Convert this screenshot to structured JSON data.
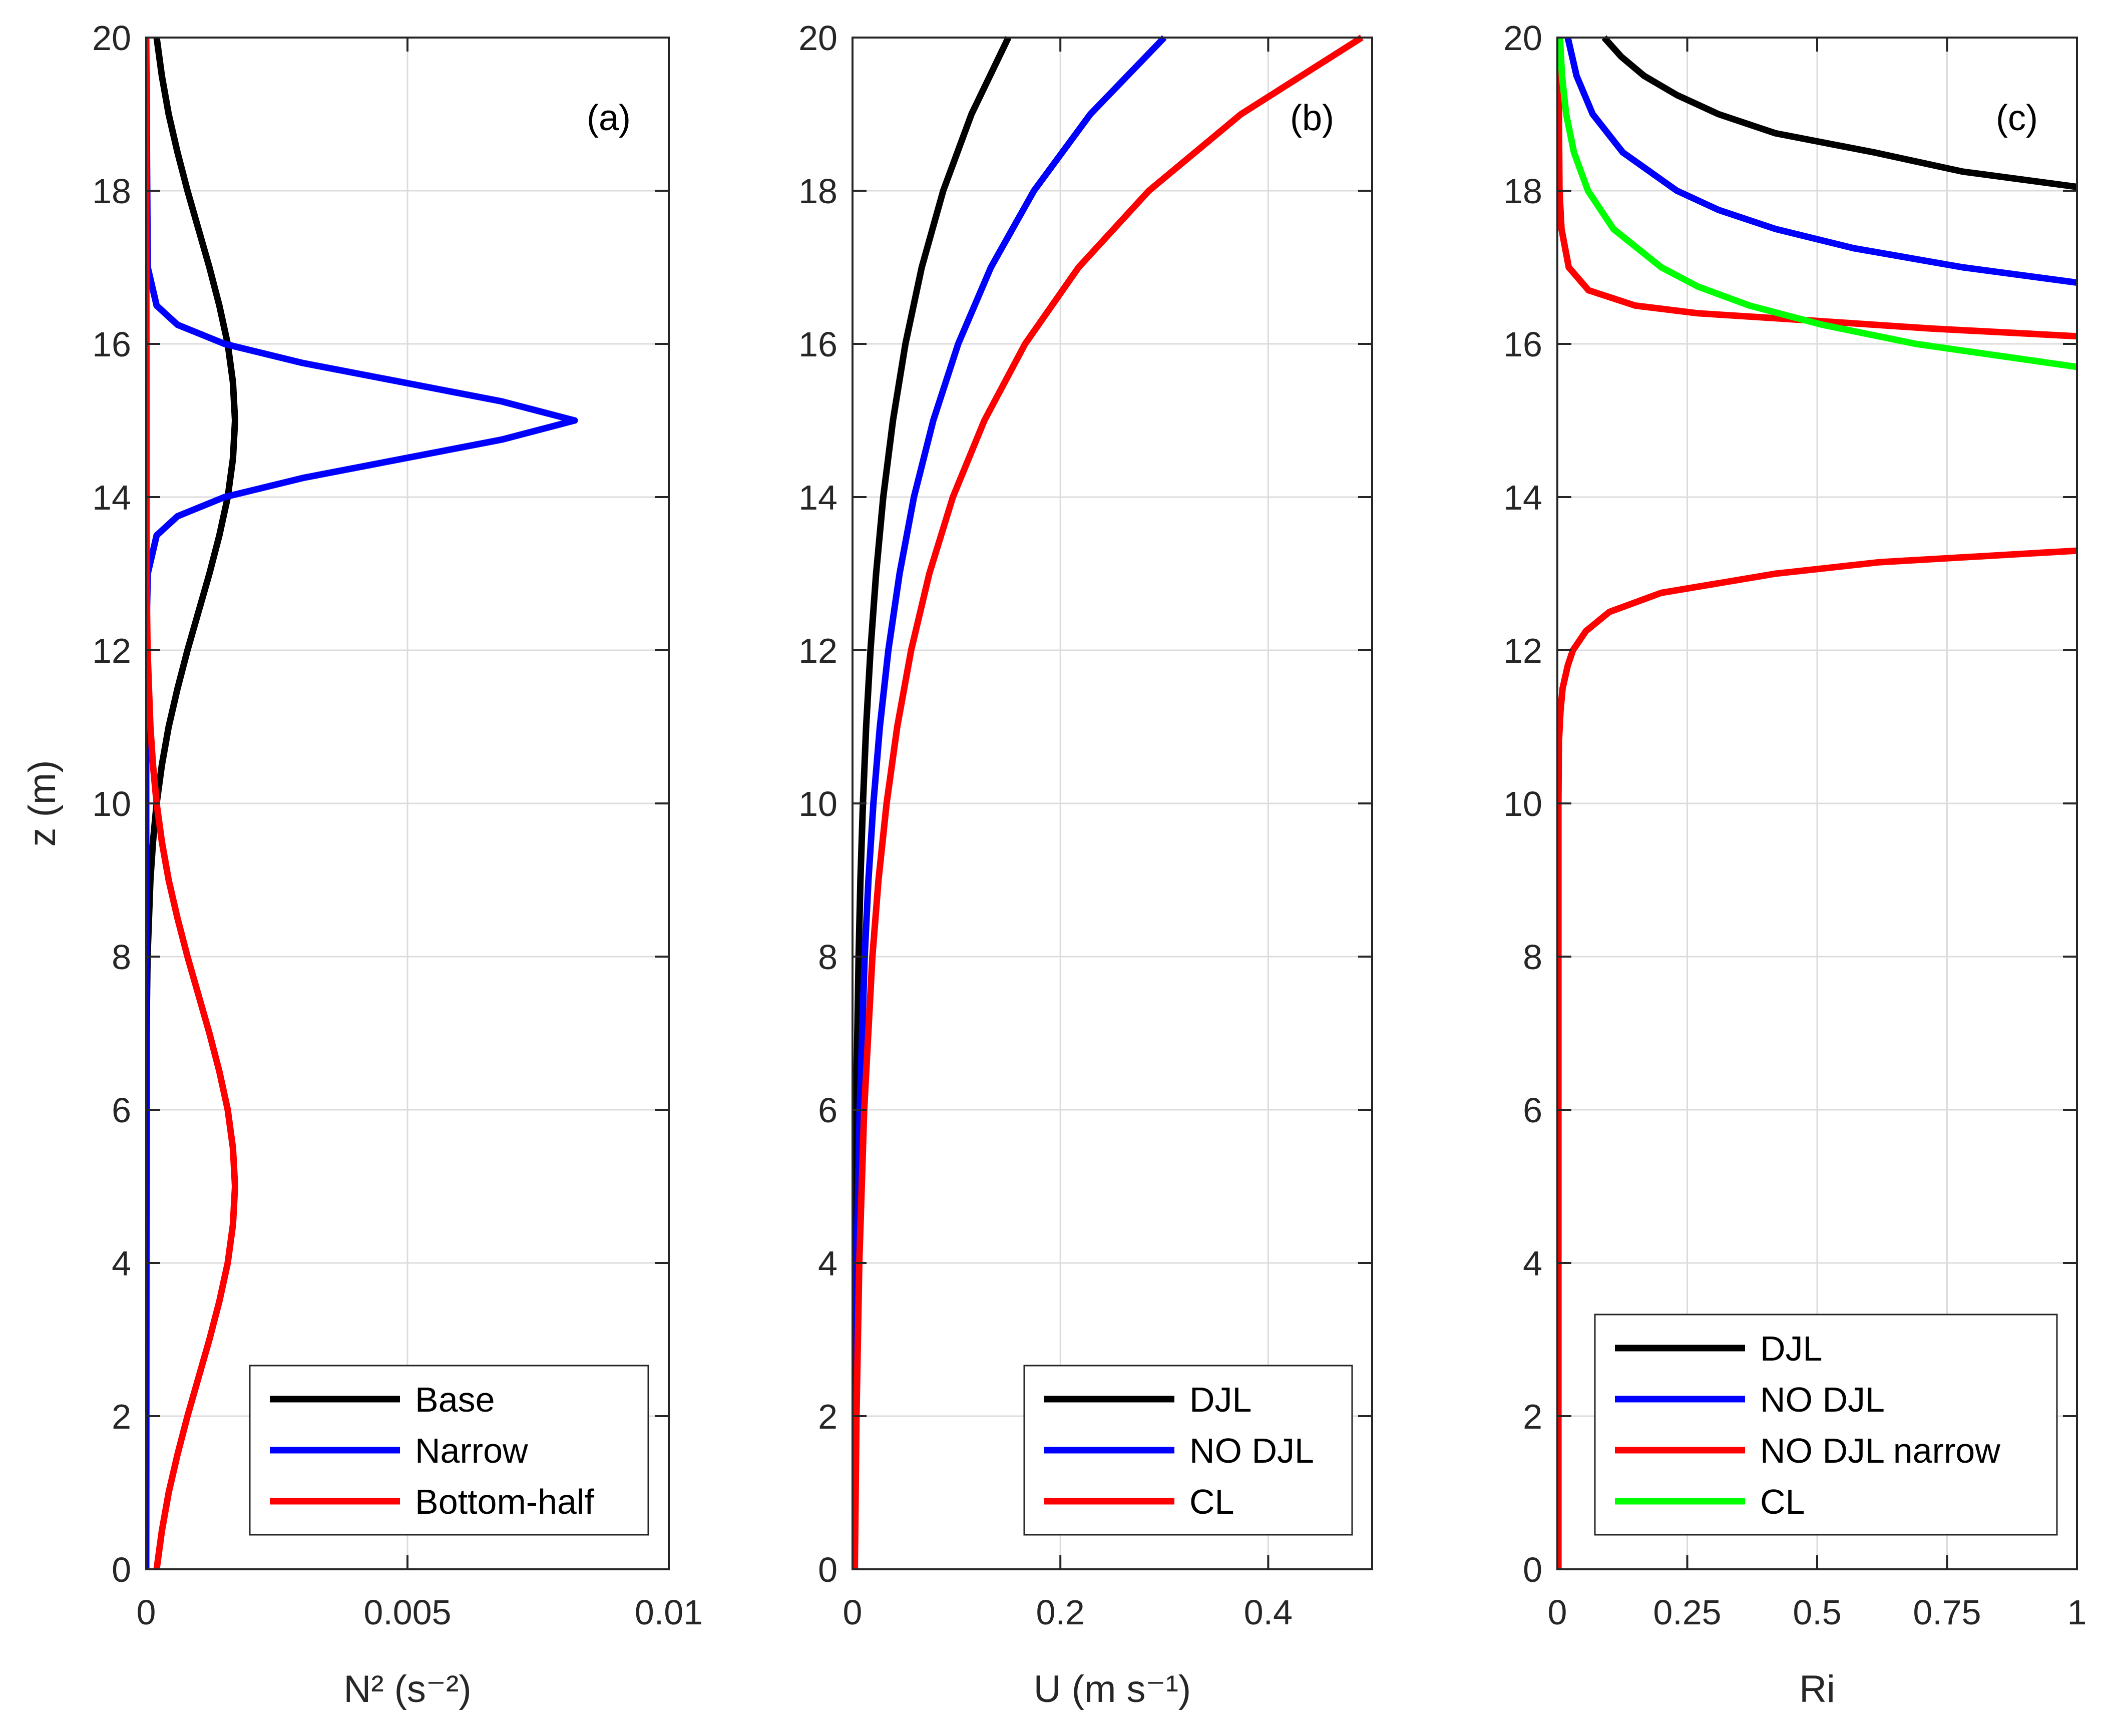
{
  "chart_data": [
    {
      "type": "line",
      "panel_label": "(a)",
      "xlabel": "N² (s⁻²)",
      "ylabel": "z (m)",
      "xlim": [
        0,
        0.01
      ],
      "ylim": [
        0,
        20
      ],
      "grid": true,
      "xticks": [
        {
          "v": 0,
          "label": "0"
        },
        {
          "v": 0.005,
          "label": "0.005"
        },
        {
          "v": 0.01,
          "label": "0.01"
        }
      ],
      "yticks": [
        {
          "v": 0,
          "label": "0"
        },
        {
          "v": 2,
          "label": "2"
        },
        {
          "v": 4,
          "label": "4"
        },
        {
          "v": 6,
          "label": "6"
        },
        {
          "v": 8,
          "label": "8"
        },
        {
          "v": 10,
          "label": "10"
        },
        {
          "v": 12,
          "label": "12"
        },
        {
          "v": 14,
          "label": "14"
        },
        {
          "v": 16,
          "label": "16"
        },
        {
          "v": 18,
          "label": "18"
        },
        {
          "v": 20,
          "label": "20"
        }
      ],
      "legend_position": "bottom-right",
      "series": [
        {
          "name": "Base",
          "color": "#000000",
          "z": [
            0,
            7,
            8,
            9,
            9.5,
            10,
            10.5,
            11,
            11.5,
            12,
            12.5,
            13,
            13.5,
            14,
            14.5,
            15,
            15.5,
            16,
            16.5,
            17,
            17.5,
            18,
            18.5,
            19,
            19.5,
            20
          ],
          "x": [
            0,
            7e-06,
            2.6e-05,
            8e-05,
            0.00013,
            0.0002,
            0.0003,
            0.00043,
            0.0006,
            0.00079,
            0.001,
            0.00121,
            0.0014,
            0.00156,
            0.00166,
            0.0017,
            0.00166,
            0.00156,
            0.0014,
            0.00121,
            0.001,
            0.00079,
            0.0006,
            0.00043,
            0.0003,
            0.0002
          ]
        },
        {
          "name": "Narrow",
          "color": "#0000ff",
          "z": [
            0,
            12,
            13,
            13.5,
            13.75,
            14,
            14.25,
            14.5,
            14.75,
            15,
            15.25,
            15.5,
            15.75,
            16,
            16.25,
            16.5,
            17,
            20
          ],
          "x": [
            0,
            0,
            3e-05,
            0.0002,
            0.0006,
            0.0015,
            0.003,
            0.0049,
            0.0068,
            0.0082,
            0.0068,
            0.0049,
            0.003,
            0.0015,
            0.0006,
            0.0002,
            3e-05,
            0
          ]
        },
        {
          "name": "Bottom-half",
          "color": "#ff0000",
          "z": [
            0,
            0.5,
            1,
            1.5,
            2,
            2.5,
            3,
            3.5,
            4,
            4.5,
            5,
            5.5,
            6,
            6.5,
            7,
            7.5,
            8,
            8.5,
            9,
            9.5,
            10,
            10.5,
            11,
            12,
            13,
            20
          ],
          "x": [
            0.0002,
            0.0003,
            0.00043,
            0.0006,
            0.00079,
            0.001,
            0.00121,
            0.0014,
            0.00156,
            0.00166,
            0.0017,
            0.00166,
            0.00156,
            0.0014,
            0.00121,
            0.001,
            0.00079,
            0.0006,
            0.00043,
            0.0003,
            0.0002,
            0.00013,
            8e-05,
            2.6e-05,
            7e-06,
            0
          ]
        }
      ]
    },
    {
      "type": "line",
      "panel_label": "(b)",
      "xlabel": "U (m s⁻¹)",
      "ylabel": "",
      "xlim": [
        0,
        0.5
      ],
      "ylim": [
        0,
        20
      ],
      "grid": true,
      "xticks": [
        {
          "v": 0,
          "label": "0"
        },
        {
          "v": 0.2,
          "label": "0.2"
        },
        {
          "v": 0.4,
          "label": "0.4"
        }
      ],
      "yticks": [
        {
          "v": 0,
          "label": "0"
        },
        {
          "v": 2,
          "label": "2"
        },
        {
          "v": 4,
          "label": "4"
        },
        {
          "v": 6,
          "label": "6"
        },
        {
          "v": 8,
          "label": "8"
        },
        {
          "v": 10,
          "label": "10"
        },
        {
          "v": 12,
          "label": "12"
        },
        {
          "v": 14,
          "label": "14"
        },
        {
          "v": 16,
          "label": "16"
        },
        {
          "v": 18,
          "label": "18"
        },
        {
          "v": 20,
          "label": "20"
        }
      ],
      "legend_position": "bottom-right",
      "series": [
        {
          "name": "DJL",
          "color": "#000000",
          "z": [
            0,
            2,
            4,
            6,
            8,
            9,
            10,
            11,
            12,
            13,
            14,
            15,
            16,
            17,
            18,
            19,
            20
          ],
          "x": [
            0.0007,
            0.0012,
            0.002,
            0.0034,
            0.0059,
            0.0076,
            0.01,
            0.0131,
            0.0173,
            0.0227,
            0.0296,
            0.0389,
            0.0509,
            0.0666,
            0.0873,
            0.1145,
            0.15
          ]
        },
        {
          "name": "NO DJL",
          "color": "#0000ff",
          "z": [
            0,
            2,
            4,
            6,
            8,
            9,
            10,
            11,
            12,
            13,
            14,
            15,
            16,
            17,
            18,
            19,
            20
          ],
          "x": [
            0.0014,
            0.0023,
            0.004,
            0.0069,
            0.0117,
            0.0153,
            0.0201,
            0.0263,
            0.0345,
            0.0453,
            0.0591,
            0.0777,
            0.1017,
            0.1332,
            0.1746,
            0.2289,
            0.3
          ]
        },
        {
          "name": "CL",
          "color": "#ff0000",
          "z": [
            0,
            2,
            4,
            6,
            8,
            9,
            10,
            11,
            12,
            13,
            14,
            15,
            16,
            17,
            18,
            19,
            20
          ],
          "x": [
            0.0022,
            0.0038,
            0.0065,
            0.0112,
            0.0191,
            0.025,
            0.0328,
            0.043,
            0.0564,
            0.0739,
            0.0966,
            0.1269,
            0.1661,
            0.2176,
            0.2852,
            0.3739,
            0.49
          ]
        }
      ]
    },
    {
      "type": "line",
      "panel_label": "(c)",
      "xlabel": "Ri",
      "ylabel": "",
      "xlim": [
        0,
        1
      ],
      "ylim": [
        0,
        20
      ],
      "grid": true,
      "xticks": [
        {
          "v": 0,
          "label": "0"
        },
        {
          "v": 0.25,
          "label": "0.25"
        },
        {
          "v": 0.5,
          "label": "0.5"
        },
        {
          "v": 0.75,
          "label": "0.75"
        },
        {
          "v": 1,
          "label": "1"
        }
      ],
      "yticks": [
        {
          "v": 0,
          "label": "0"
        },
        {
          "v": 2,
          "label": "2"
        },
        {
          "v": 4,
          "label": "4"
        },
        {
          "v": 6,
          "label": "6"
        },
        {
          "v": 8,
          "label": "8"
        },
        {
          "v": 10,
          "label": "10"
        },
        {
          "v": 12,
          "label": "12"
        },
        {
          "v": 14,
          "label": "14"
        },
        {
          "v": 16,
          "label": "16"
        },
        {
          "v": 18,
          "label": "18"
        },
        {
          "v": 20,
          "label": "20"
        }
      ],
      "legend_position": "bottom-right",
      "series": [
        {
          "name": "DJL",
          "color": "#000000",
          "z": [
            18.05,
            18.25,
            18.5,
            18.75,
            19,
            19.25,
            19.5,
            19.75,
            20
          ],
          "x": [
            1,
            0.78,
            0.61,
            0.42,
            0.31,
            0.23,
            0.167,
            0.123,
            0.09
          ]
        },
        {
          "name": "NO DJL",
          "color": "#0000ff",
          "z": [
            16.8,
            17,
            17.25,
            17.5,
            17.75,
            18,
            18.5,
            19,
            19.5,
            20
          ],
          "x": [
            1,
            0.78,
            0.57,
            0.42,
            0.31,
            0.23,
            0.126,
            0.068,
            0.037,
            0.02
          ]
        },
        {
          "name": "NO DJL narrow",
          "color": "#ff0000",
          "z": [
            0,
            10,
            10.8,
            11.2,
            11.5,
            11.8,
            12,
            12.25,
            12.5,
            12.75,
            13,
            13.15,
            13.3,
            null,
            16.1,
            16.2,
            16.3,
            16.4,
            16.5,
            16.7,
            17,
            17.5,
            18,
            20
          ],
          "x": [
            0.002,
            0.002,
            0.003,
            0.006,
            0.01,
            0.02,
            0.03,
            0.055,
            0.1,
            0.2,
            0.42,
            0.62,
            1,
            null,
            1,
            0.72,
            0.5,
            0.27,
            0.15,
            0.06,
            0.022,
            0.008,
            0.004,
            0.002
          ]
        },
        {
          "name": "CL",
          "color": "#00ff00",
          "z": [
            15.7,
            16,
            16.25,
            16.5,
            16.75,
            17,
            17.5,
            18,
            18.5,
            19,
            19.5,
            20
          ],
          "x": [
            1,
            0.69,
            0.51,
            0.37,
            0.27,
            0.2,
            0.108,
            0.059,
            0.032,
            0.017,
            0.009,
            0.005
          ]
        }
      ]
    }
  ]
}
